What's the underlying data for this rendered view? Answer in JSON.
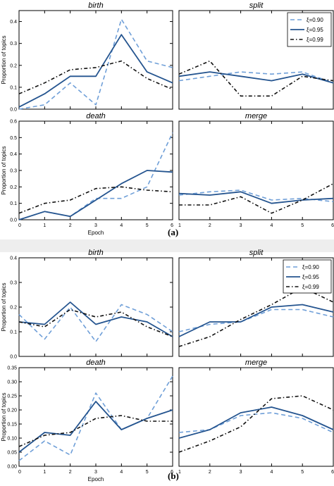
{
  "figure_labels": {
    "a": "(a)",
    "b": "(b)"
  },
  "colors": {
    "xi090": "#6f9fd8",
    "xi095": "#24548f",
    "xi099": "#111111"
  },
  "chart_data": [
    {
      "type": "line",
      "panel_group": "a",
      "title": "birth",
      "ylabel": "Proportion of topics",
      "xlabel": "",
      "x": [
        0,
        1,
        2,
        3,
        4,
        5,
        6
      ],
      "xlim": [
        0,
        6
      ],
      "ylim": [
        0,
        0.45
      ],
      "yticks": [
        "0.0",
        "0.1",
        "0.2",
        "0.3",
        "0.4"
      ],
      "yticks_values": [
        0,
        0.1,
        0.2,
        0.3,
        0.4
      ],
      "xticks": [],
      "legend": false,
      "series": [
        {
          "name": "ξ=0.90",
          "style": "dashed",
          "values": [
            0.0,
            0.02,
            0.12,
            0.02,
            0.41,
            0.22,
            0.19
          ]
        },
        {
          "name": "ξ=0.95",
          "style": "solid",
          "values": [
            0.01,
            0.07,
            0.15,
            0.15,
            0.34,
            0.17,
            0.12
          ]
        },
        {
          "name": "ξ=0.99",
          "style": "dashdot",
          "values": [
            0.07,
            0.12,
            0.18,
            0.19,
            0.22,
            0.14,
            0.09
          ]
        }
      ]
    },
    {
      "type": "line",
      "panel_group": "a",
      "title": "split",
      "ylabel": "",
      "xlabel": "",
      "x": [
        1,
        2,
        3,
        4,
        5,
        6
      ],
      "xlim": [
        1,
        6
      ],
      "ylim": [
        0,
        0.45
      ],
      "yticks": [],
      "yticks_values": [],
      "xticks": [],
      "legend": true,
      "series": [
        {
          "name": "ξ=0.90",
          "style": "dashed",
          "values": [
            0.13,
            0.15,
            0.17,
            0.16,
            0.17,
            0.12
          ]
        },
        {
          "name": "ξ=0.95",
          "style": "solid",
          "values": [
            0.15,
            0.17,
            0.15,
            0.13,
            0.16,
            0.12
          ]
        },
        {
          "name": "ξ=0.99",
          "style": "dashdot",
          "values": [
            0.16,
            0.22,
            0.06,
            0.06,
            0.15,
            0.13
          ]
        }
      ]
    },
    {
      "type": "line",
      "panel_group": "a",
      "title": "death",
      "ylabel": "Proportion of topics",
      "xlabel": "Epoch",
      "x": [
        0,
        1,
        2,
        3,
        4,
        5,
        6
      ],
      "xlim": [
        0,
        6
      ],
      "ylim": [
        0,
        0.6
      ],
      "yticks": [
        "0.0",
        "0.1",
        "0.2",
        "0.3",
        "0.4",
        "0.5",
        "0.6"
      ],
      "yticks_values": [
        0,
        0.1,
        0.2,
        0.3,
        0.4,
        0.5,
        0.6
      ],
      "xticks": [
        "0",
        "1",
        "2",
        "3",
        "4",
        "5",
        "6"
      ],
      "legend": false,
      "series": [
        {
          "name": "ξ=0.90",
          "style": "dashed",
          "values": [
            0.0,
            0.05,
            0.02,
            0.13,
            0.13,
            0.2,
            0.53
          ]
        },
        {
          "name": "ξ=0.95",
          "style": "solid",
          "values": [
            0.0,
            0.05,
            0.02,
            0.12,
            0.22,
            0.3,
            0.29
          ]
        },
        {
          "name": "ξ=0.99",
          "style": "dashdot",
          "values": [
            0.04,
            0.1,
            0.12,
            0.19,
            0.2,
            0.18,
            0.17
          ]
        }
      ]
    },
    {
      "type": "line",
      "panel_group": "a",
      "title": "merge",
      "ylabel": "",
      "xlabel": "",
      "x": [
        1,
        2,
        3,
        4,
        5,
        6
      ],
      "xlim": [
        1,
        6
      ],
      "ylim": [
        0,
        0.6
      ],
      "yticks": [],
      "yticks_values": [],
      "xticks": [
        "1",
        "2",
        "3",
        "4",
        "5",
        "6"
      ],
      "legend": false,
      "series": [
        {
          "name": "ξ=0.90",
          "style": "dashed",
          "values": [
            0.15,
            0.17,
            0.18,
            0.12,
            0.13,
            0.11
          ]
        },
        {
          "name": "ξ=0.95",
          "style": "solid",
          "values": [
            0.16,
            0.15,
            0.17,
            0.1,
            0.12,
            0.13
          ]
        },
        {
          "name": "ξ=0.99",
          "style": "dashdot",
          "values": [
            0.09,
            0.09,
            0.14,
            0.04,
            0.12,
            0.22
          ]
        }
      ]
    },
    {
      "type": "line",
      "panel_group": "b",
      "title": "birth",
      "ylabel": "Proportion of topics",
      "xlabel": "",
      "x": [
        0,
        1,
        2,
        3,
        4,
        5,
        6
      ],
      "xlim": [
        0,
        6
      ],
      "ylim": [
        0,
        0.4
      ],
      "yticks": [
        "0.0",
        "0.1",
        "0.2",
        "0.3",
        "0.4"
      ],
      "yticks_values": [
        0,
        0.1,
        0.2,
        0.3,
        0.4
      ],
      "xticks": [],
      "legend": false,
      "series": [
        {
          "name": "ξ=0.90",
          "style": "dashed",
          "values": [
            0.17,
            0.07,
            0.2,
            0.06,
            0.21,
            0.17,
            0.1
          ]
        },
        {
          "name": "ξ=0.95",
          "style": "solid",
          "values": [
            0.14,
            0.13,
            0.22,
            0.13,
            0.16,
            0.14,
            0.08
          ]
        },
        {
          "name": "ξ=0.99",
          "style": "dashdot",
          "values": [
            0.14,
            0.12,
            0.19,
            0.16,
            0.18,
            0.12,
            0.08
          ]
        }
      ]
    },
    {
      "type": "line",
      "panel_group": "b",
      "title": "split",
      "ylabel": "",
      "xlabel": "",
      "x": [
        1,
        2,
        3,
        4,
        5,
        6
      ],
      "xlim": [
        1,
        6
      ],
      "ylim": [
        0,
        0.4
      ],
      "yticks": [],
      "yticks_values": [],
      "xticks": [],
      "legend": true,
      "series": [
        {
          "name": "ξ=0.90",
          "style": "dashed",
          "values": [
            0.1,
            0.13,
            0.14,
            0.19,
            0.19,
            0.16
          ]
        },
        {
          "name": "ξ=0.95",
          "style": "solid",
          "values": [
            0.08,
            0.14,
            0.14,
            0.2,
            0.21,
            0.18
          ]
        },
        {
          "name": "ξ=0.99",
          "style": "dashdot",
          "values": [
            0.04,
            0.08,
            0.15,
            0.21,
            0.28,
            0.22
          ]
        }
      ]
    },
    {
      "type": "line",
      "panel_group": "b",
      "title": "death",
      "ylabel": "Proportion of topics",
      "xlabel": "Epoch",
      "x": [
        0,
        1,
        2,
        3,
        4,
        5,
        6
      ],
      "xlim": [
        0,
        6
      ],
      "ylim": [
        0,
        0.35
      ],
      "yticks": [
        "0.00",
        "0.05",
        "0.10",
        "0.15",
        "0.20",
        "0.25",
        "0.30",
        "0.35"
      ],
      "yticks_values": [
        0,
        0.05,
        0.1,
        0.15,
        0.2,
        0.25,
        0.3,
        0.35
      ],
      "xticks": [
        "0",
        "1",
        "2",
        "3",
        "4",
        "5",
        "6"
      ],
      "legend": false,
      "series": [
        {
          "name": "ξ=0.90",
          "style": "dashed",
          "values": [
            0.02,
            0.09,
            0.04,
            0.26,
            0.13,
            0.17,
            0.32
          ]
        },
        {
          "name": "ξ=0.95",
          "style": "solid",
          "values": [
            0.05,
            0.12,
            0.11,
            0.23,
            0.13,
            0.17,
            0.2
          ]
        },
        {
          "name": "ξ=0.99",
          "style": "dashdot",
          "values": [
            0.07,
            0.11,
            0.12,
            0.17,
            0.18,
            0.16,
            0.16
          ]
        }
      ]
    },
    {
      "type": "line",
      "panel_group": "b",
      "title": "merge",
      "ylabel": "",
      "xlabel": "",
      "x": [
        1,
        2,
        3,
        4,
        5,
        6
      ],
      "xlim": [
        1,
        6
      ],
      "ylim": [
        0,
        0.35
      ],
      "yticks": [],
      "yticks_values": [],
      "xticks": [
        "1",
        "2",
        "3",
        "4",
        "5",
        "6"
      ],
      "legend": false,
      "series": [
        {
          "name": "ξ=0.90",
          "style": "dashed",
          "values": [
            0.12,
            0.13,
            0.18,
            0.19,
            0.17,
            0.12
          ]
        },
        {
          "name": "ξ=0.95",
          "style": "solid",
          "values": [
            0.1,
            0.13,
            0.19,
            0.21,
            0.18,
            0.13
          ]
        },
        {
          "name": "ξ=0.99",
          "style": "dashdot",
          "values": [
            0.05,
            0.09,
            0.14,
            0.24,
            0.25,
            0.2
          ]
        }
      ]
    }
  ]
}
